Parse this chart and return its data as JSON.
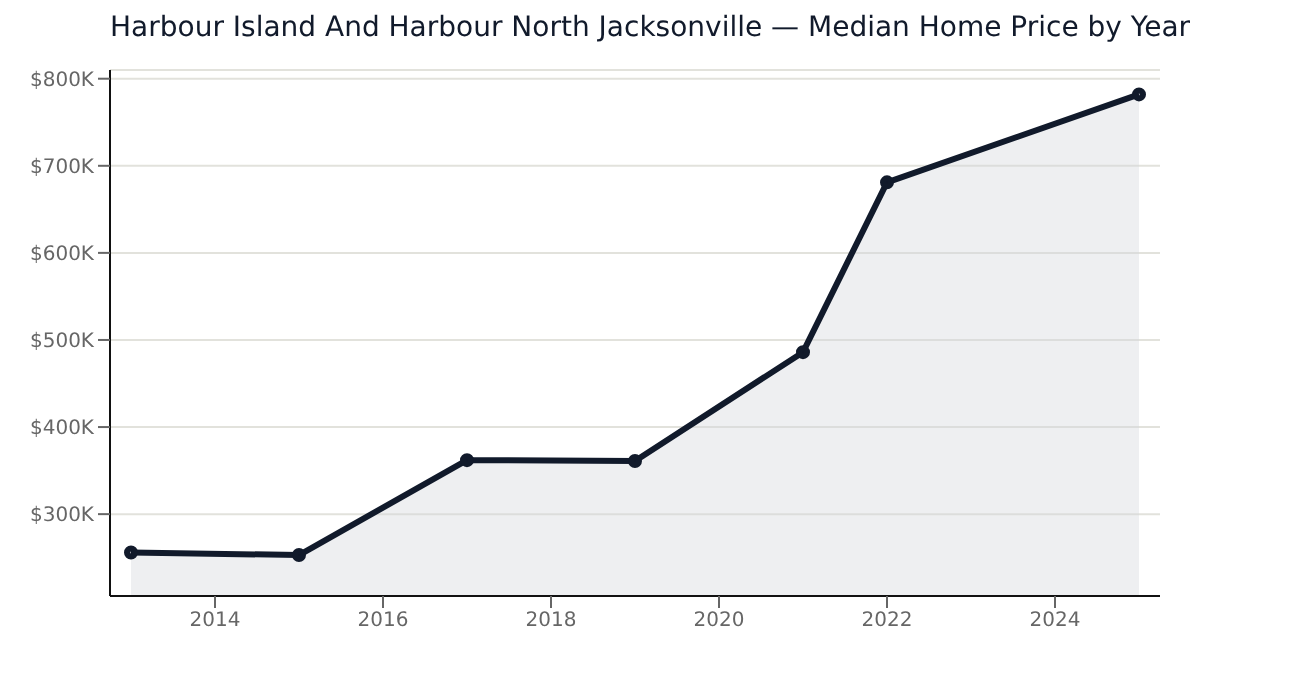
{
  "chart_data": {
    "type": "area",
    "title": "Harbour Island And Harbour North Jacksonville — Median Home Price by Year",
    "x": [
      2013,
      2015,
      2017,
      2019,
      2021,
      2022,
      2025
    ],
    "series": [
      {
        "color": "#111a2b",
        "values": [
          256000,
          253000,
          362000,
          361000,
          486000,
          681000,
          782000
        ]
      }
    ],
    "xlim": [
      2012.75,
      2025.25
    ],
    "xticks": [
      2014,
      2016,
      2018,
      2020,
      2022,
      2024
    ],
    "ylim": [
      206000,
      810000
    ],
    "yticks": [
      {
        "value": 300000,
        "label": "$300K"
      },
      {
        "value": 400000,
        "label": "$400K"
      },
      {
        "value": 500000,
        "label": "$500K"
      },
      {
        "value": 600000,
        "label": "$600K"
      },
      {
        "value": 700000,
        "label": "$700K"
      },
      {
        "value": 800000,
        "label": "$800K"
      }
    ],
    "grid": "y",
    "marker": "circle"
  }
}
